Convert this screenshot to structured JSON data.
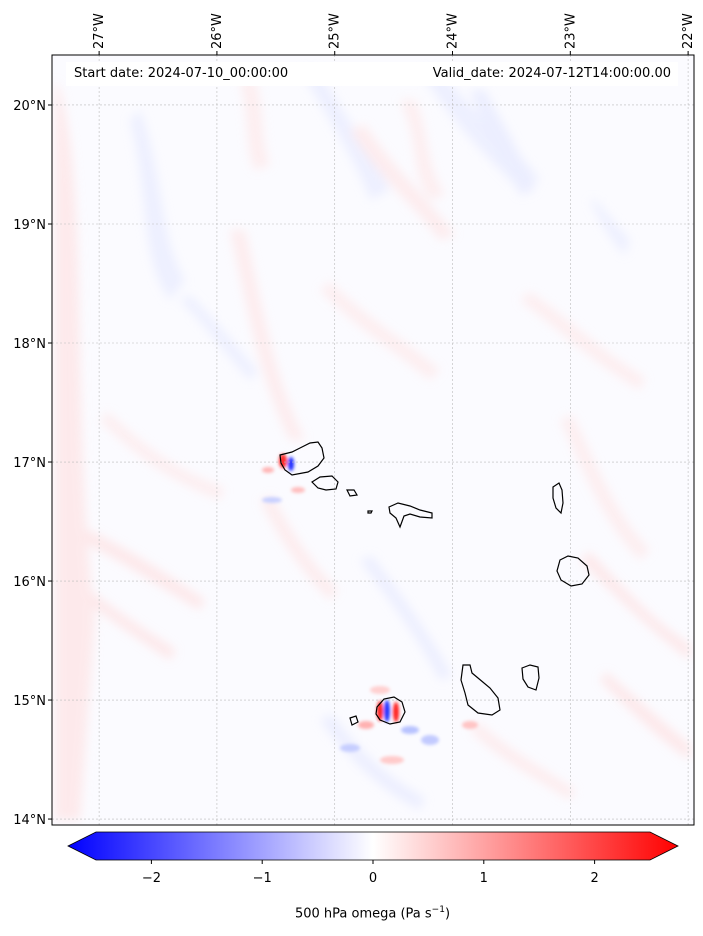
{
  "map": {
    "start_date": "Start date: 2024-07-10_00:00:00",
    "valid_date": "Valid_date: 2024-07-12T14:00:00.00",
    "longitude_labels": [
      "27°W",
      "26°W",
      "25°W",
      "24°W",
      "23°W",
      "22°W"
    ],
    "latitude_labels": [
      "20°N",
      "19°N",
      "18°N",
      "17°N",
      "16°N",
      "15°N",
      "14°N"
    ],
    "lon_values": [
      -27,
      -26,
      -25,
      -24,
      -23,
      -22
    ],
    "lat_values": [
      20,
      19,
      18,
      17,
      16,
      15,
      14
    ],
    "lon_range": [
      -27.4,
      -21.95
    ],
    "lat_range": [
      13.95,
      20.42
    ],
    "gridlines": true,
    "field": "500 hPa omega",
    "features": [
      "Santo Antão",
      "São Vicente",
      "Santa Luzia",
      "São Nicolau",
      "Sal",
      "Boa Vista",
      "Fogo",
      "Brava",
      "Santiago",
      "Maio"
    ]
  },
  "colorbar": {
    "label_prefix": "500 hPa omega (Pa s",
    "label_sup": "−1",
    "label_suffix": ")",
    "ticks": [
      "−2",
      "−1",
      "0",
      "1",
      "2"
    ],
    "tick_values": [
      -2,
      -1,
      0,
      1,
      2
    ],
    "range": [
      -2.5,
      2.5
    ],
    "extend": "both",
    "cmap": "bwr",
    "colors": {
      "negative": "#0000ff",
      "zero": "#ffffff",
      "positive": "#ff0000"
    }
  }
}
